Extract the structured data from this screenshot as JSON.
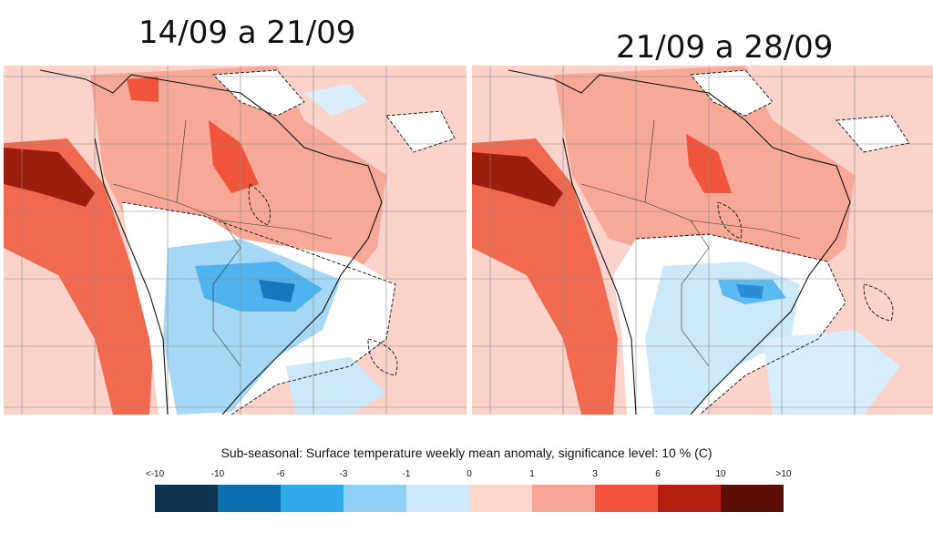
{
  "panels": [
    {
      "title": "14/09 a 21/09"
    },
    {
      "title": "21/09 a 28/09"
    }
  ],
  "legend": {
    "caption": "Sub-seasonal: Surface temperature weekly mean anomaly, significance level: 10 % (C)",
    "ticks": [
      "<-10",
      "-10",
      "-6",
      "-3",
      "-1",
      "0",
      "1",
      "3",
      "6",
      "10",
      ">10"
    ],
    "colors": [
      "#0d3352",
      "#0b6faf",
      "#2fa8ec",
      "#8fd0f5",
      "#cbe9fb",
      "#fdd5cd",
      "#f7a594",
      "#f2533a",
      "#b4200d",
      "#5c0d06"
    ]
  }
}
